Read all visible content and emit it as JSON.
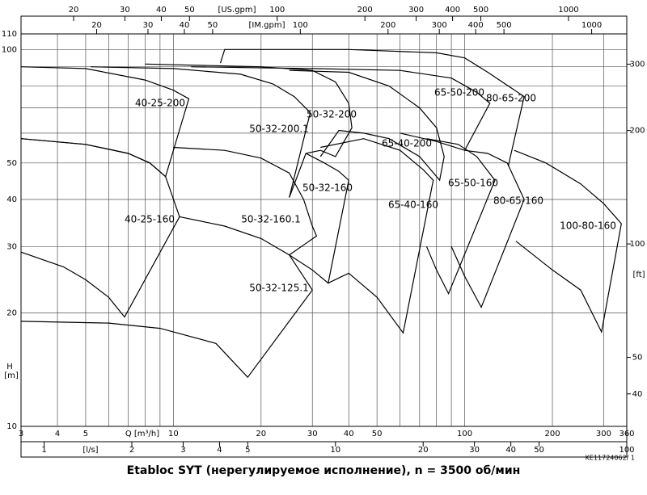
{
  "chart_data": {
    "type": "line",
    "title": "Etabloc SYT (нерегулируемое исполнение), n = 3500 об/мин",
    "code": "KE11724062/ 1",
    "x_label": "Q [m³/h]",
    "y_label": "H",
    "y_unit": "[m]",
    "xscale": "log",
    "yscale": "log",
    "grid": true,
    "xlim": [
      3,
      360
    ],
    "ylim": [
      10,
      110
    ],
    "xticks": [
      3,
      4,
      5,
      10,
      20,
      30,
      40,
      50,
      100,
      200,
      300,
      360
    ],
    "yticks": [
      10,
      20,
      30,
      40,
      50,
      100,
      110
    ],
    "minor_xgrid": [
      6,
      7,
      8,
      9,
      60,
      70,
      80,
      90
    ],
    "minor_ygrid": [
      60,
      70,
      80,
      90
    ],
    "secondary_axes": [
      {
        "label": "[US.gpm]",
        "position": "top",
        "lim": [
          13.2,
          1585
        ],
        "ticks": [
          20,
          30,
          40,
          50,
          100,
          200,
          300,
          400,
          500,
          1000
        ]
      },
      {
        "label": "[IM.gpm]",
        "position": "top-inner",
        "lim": [
          11,
          1320
        ],
        "ticks": [
          20,
          30,
          40,
          50,
          100,
          200,
          300,
          400,
          500,
          1000
        ]
      },
      {
        "label": "[l/s]",
        "position": "bottom",
        "lim": [
          0.833,
          100
        ],
        "ticks": [
          1,
          2,
          3,
          4,
          5,
          10,
          20,
          30,
          40,
          50,
          100
        ]
      },
      {
        "label": "[ft]",
        "position": "right",
        "lim": [
          32.8,
          360.9
        ],
        "ticks": [
          40,
          50,
          100,
          200,
          300
        ]
      }
    ],
    "series": [
      {
        "name": "40-25-200",
        "color": "#000000",
        "x": [
          3,
          5,
          8,
          10,
          11.3,
          9.4,
          8.3,
          7,
          5,
          3
        ],
        "values": [
          90,
          89,
          83,
          78,
          74,
          46,
          50,
          53,
          56,
          58
        ]
      },
      {
        "name": "40-25-160",
        "color": "#000000",
        "x": [
          3,
          5,
          7,
          8.3,
          9.4,
          10.5,
          6.8,
          6,
          5,
          4.2,
          3
        ],
        "values": [
          58,
          56,
          53,
          50,
          46,
          36,
          19.5,
          22,
          24.5,
          26.5,
          29
        ]
      },
      {
        "name": "50-32-125.1",
        "color": "#000000",
        "x": [
          10.5,
          15,
          20,
          25,
          30,
          18,
          14,
          9,
          6,
          3
        ],
        "values": [
          36,
          34,
          31.5,
          28.5,
          23,
          13.5,
          16.6,
          18.2,
          18.8,
          19
        ]
      },
      {
        "name": "50-32-160.1",
        "color": "#000000",
        "x": [
          10,
          15,
          20,
          25,
          28,
          30,
          31,
          25
        ],
        "values": [
          55,
          54,
          51.5,
          47,
          40,
          34,
          32,
          28.5
        ]
      },
      {
        "name": "50-32-200.1",
        "color": "#000000",
        "x": [
          5.2,
          10,
          17,
          22,
          26,
          29.5,
          25
        ],
        "values": [
          90,
          89,
          86,
          81,
          75,
          68,
          40.5
        ]
      },
      {
        "name": "50-32-200",
        "color": "#000000",
        "x": [
          8,
          20,
          30,
          36,
          40,
          41,
          36,
          32,
          28.5,
          25
        ],
        "values": [
          91.5,
          90,
          88,
          82,
          72,
          62,
          52,
          54,
          53,
          40.5
        ]
      },
      {
        "name": "50-32-160",
        "color": "#000000",
        "x": [
          28.5,
          33,
          37,
          40,
          34,
          30,
          25
        ],
        "values": [
          53,
          50,
          47.5,
          45,
          24,
          26,
          28.5
        ]
      },
      {
        "name": "65-40-200",
        "color": "#000000",
        "x": [
          25,
          40,
          55,
          70,
          80,
          85,
          82,
          70,
          55,
          45,
          37,
          32
        ],
        "values": [
          88,
          87,
          80,
          70,
          62,
          52,
          45,
          52,
          58,
          60,
          61,
          52
        ]
      },
      {
        "name": "65-40-160",
        "color": "#000000",
        "x": [
          32,
          45,
          60,
          72,
          78,
          61.5,
          50,
          40,
          34
        ],
        "values": [
          55,
          58,
          54,
          48,
          45,
          17.7,
          22,
          25.5,
          24
        ]
      },
      {
        "name": "65-50-200",
        "color": "#000000",
        "x": [
          11.5,
          30,
          60,
          90,
          110,
          122,
          100,
          80,
          60
        ],
        "values": [
          90,
          89,
          88,
          84,
          77,
          72,
          54,
          57,
          60
        ]
      },
      {
        "name": "65-50-160",
        "color": "#000000",
        "x": [
          74,
          95,
          110,
          127,
          88,
          80,
          74
        ],
        "values": [
          58,
          56,
          52,
          45,
          22.5,
          26,
          30
        ]
      },
      {
        "name": "80-65-200",
        "color": "#000000",
        "x": [
          14.5,
          15,
          40,
          80,
          100,
          120,
          160,
          141
        ],
        "values": [
          92,
          100,
          100,
          98,
          95,
          87,
          75,
          49
        ]
      },
      {
        "name": "80-65-160",
        "color": "#000000",
        "x": [
          100,
          120,
          140,
          160,
          114,
          100,
          90
        ],
        "values": [
          54,
          53,
          50,
          40,
          20.7,
          25,
          30
        ]
      },
      {
        "name": "100-80-160",
        "color": "#000000",
        "x": [
          148,
          190,
          250,
          300,
          345,
          295,
          250,
          200,
          150
        ],
        "values": [
          54,
          50,
          44,
          39,
          34.5,
          17.8,
          23,
          26,
          31
        ]
      }
    ]
  }
}
